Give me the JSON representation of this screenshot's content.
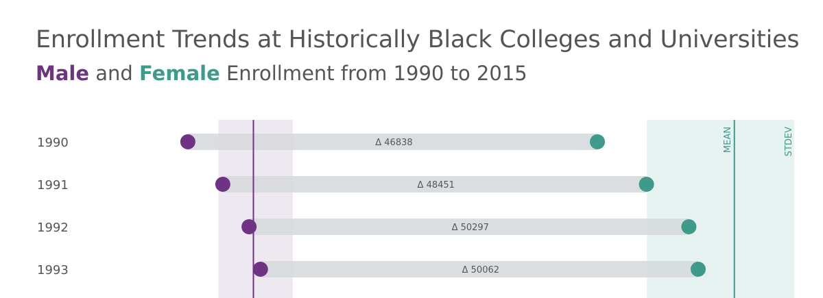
{
  "title": "Enrollment Trends at Historically Black Colleges and Universities",
  "subtitle": {
    "male_word": "Male",
    "middle_text": " and ",
    "female_word": "Female",
    "rest_text": " Enrollment from 1990 to 2015"
  },
  "colors": {
    "male": "#6e3382",
    "female": "#3e9a8b",
    "bar": "#d5d8dc",
    "male_band": "#eee8f0",
    "female_band": "#e6f3f0",
    "text": "#555555"
  },
  "chart_data": {
    "type": "dumbbell",
    "title": "Enrollment Trends at Historically Black Colleges and Universities",
    "subtitle": "Male and Female Enrollment from 1990 to 2015",
    "categories": [
      "1990",
      "1991",
      "1992",
      "1993"
    ],
    "series": [
      {
        "name": "Male",
        "values": [
          105500,
          109500,
          112500,
          113800
        ]
      },
      {
        "name": "Female",
        "values": [
          152338,
          157951,
          162797,
          163862
        ]
      }
    ],
    "delta_labels": [
      "Δ 46838",
      "Δ 48451",
      "Δ 50297",
      "Δ 50062"
    ],
    "xlim": [
      95000,
      175000
    ],
    "reference_bands": {
      "male": {
        "mean": 113000,
        "low": 109000,
        "high": 117500
      },
      "female": {
        "mean": 168000,
        "low": 158000,
        "high": 178000,
        "mean_label": "MEAN",
        "stdev_label": "STDEV"
      }
    },
    "xlabel": "",
    "ylabel": ""
  }
}
